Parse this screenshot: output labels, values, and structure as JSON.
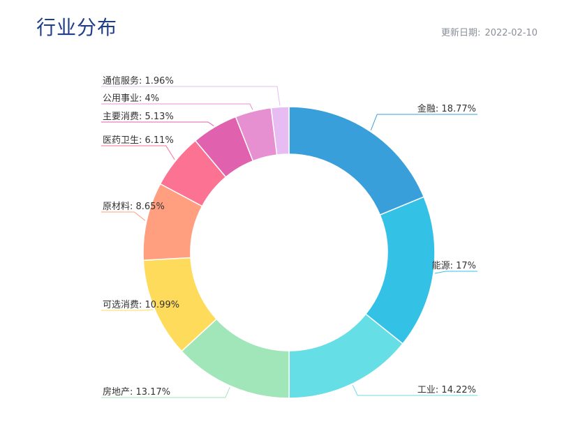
{
  "header": {
    "title": "行业分布",
    "update_label": "更新日期:",
    "update_date": "2022-02-10"
  },
  "chart_data": {
    "type": "pie",
    "variant": "donut",
    "title": "行业分布",
    "slices": [
      {
        "name": "金融",
        "label": "金融: 18.77%",
        "value": 18.77,
        "color": "#399fda"
      },
      {
        "name": "能源",
        "label": "能源: 17%",
        "value": 17,
        "color": "#33c2e6"
      },
      {
        "name": "工业",
        "label": "工业: 14.22%",
        "value": 14.22,
        "color": "#66dee5"
      },
      {
        "name": "房地产",
        "label": "房地产: 13.17%",
        "value": 13.17,
        "color": "#a0e6b8"
      },
      {
        "name": "可选消费",
        "label": "可选消费: 10.99%",
        "value": 10.99,
        "color": "#ffdb5c"
      },
      {
        "name": "原材料",
        "label": "原材料: 8.65%",
        "value": 8.65,
        "color": "#ff9f7f"
      },
      {
        "name": "医药卫生",
        "label": "医药卫生: 6.11%",
        "value": 6.11,
        "color": "#fb7293"
      },
      {
        "name": "主要消费",
        "label": "主要消费: 5.13%",
        "value": 5.13,
        "color": "#e062ae"
      },
      {
        "name": "公用事业",
        "label": "公用事业: 4%",
        "value": 4,
        "color": "#e690d1"
      },
      {
        "name": "通信服务",
        "label": "通信服务: 1.96%",
        "value": 1.96,
        "color": "#e7bcf3"
      }
    ]
  }
}
